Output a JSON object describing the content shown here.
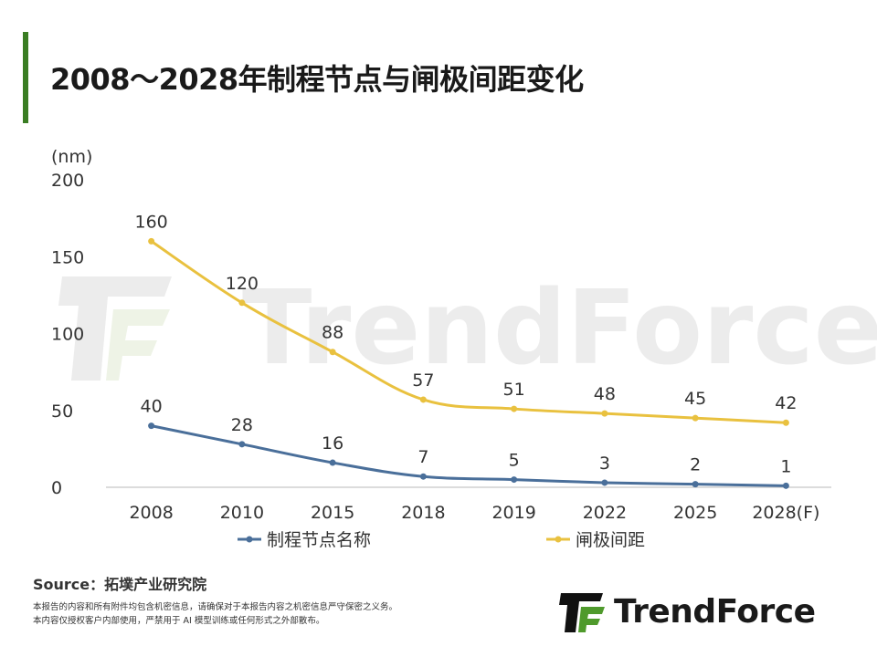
{
  "title": "2008～2028年制程节点与闸极间距变化",
  "colors": {
    "accent": "#3a7d23",
    "series_node": "#4a6f9a",
    "series_pitch": "#e9c13f",
    "watermark": "#ececec",
    "text": "#333333"
  },
  "watermark_text": "TrendForce",
  "source": "Source：拓墣产业研究院",
  "disclaimer": [
    "本报告的内容和所有附件均包含机密信息，请确保对于本报告内容之机密信息严守保密之义务。",
    "本内容仅授权客户内部使用，严禁用于 AI 模型训练或任何形式之外部散布。"
  ],
  "brand": {
    "name": "TrendForce",
    "logo_icon": "trendforce-logo-icon"
  },
  "chart_data": {
    "type": "line",
    "title": "",
    "xlabel": "",
    "ylabel": "(nm)",
    "ylim": [
      0,
      200
    ],
    "yticks": [
      0,
      50,
      100,
      150,
      200
    ],
    "grid": false,
    "legend_position": "bottom",
    "categories": [
      "2008",
      "2010",
      "2015",
      "2018",
      "2019",
      "2022",
      "2025",
      "2028(F)"
    ],
    "series": [
      {
        "name": "制程节点名称",
        "values": [
          40,
          28,
          16,
          7,
          5,
          3,
          2,
          1
        ],
        "color": "#4a6f9a"
      },
      {
        "name": "闸极间距",
        "values": [
          160,
          120,
          88,
          57,
          51,
          48,
          45,
          42
        ],
        "color": "#e9c13f"
      }
    ]
  }
}
